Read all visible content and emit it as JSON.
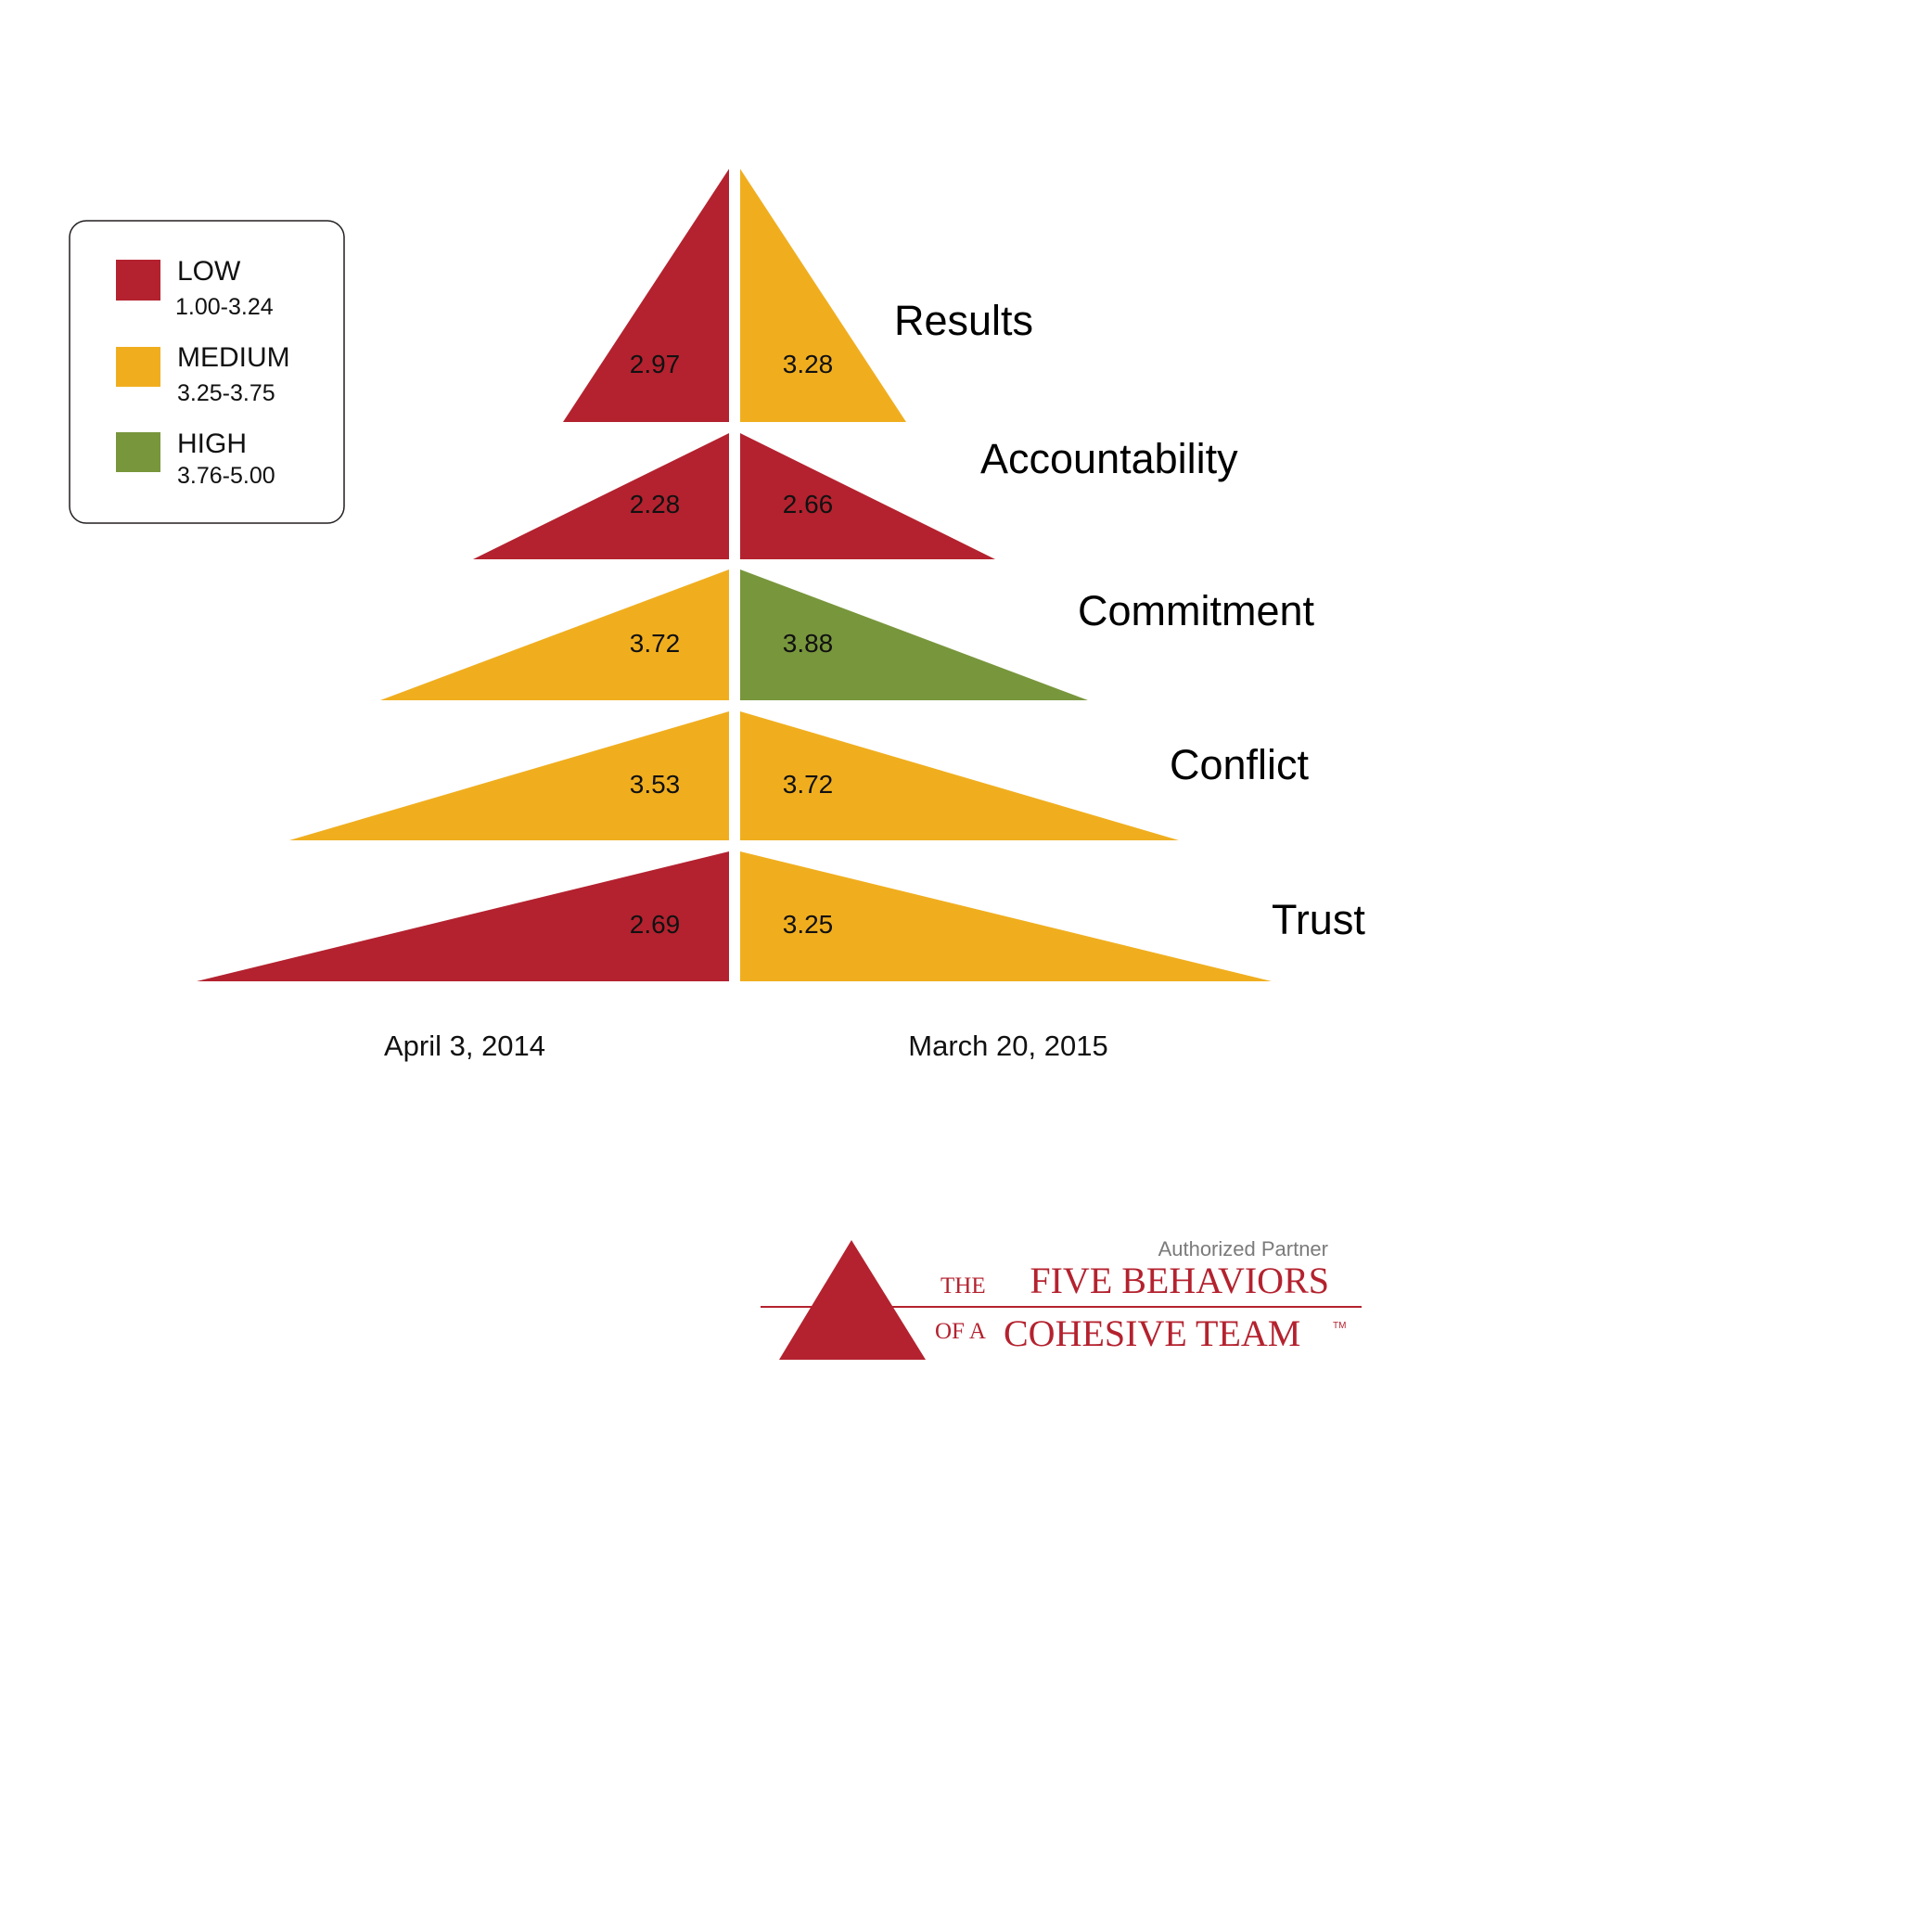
{
  "colors": {
    "low": "#b4222f",
    "medium": "#f0ae1f",
    "high": "#78963c",
    "brand": "#b4222f"
  },
  "legend": {
    "items": [
      {
        "level": "low",
        "label": "LOW",
        "range": "1.00-3.24"
      },
      {
        "level": "medium",
        "label": "MEDIUM",
        "range": "3.25-3.75"
      },
      {
        "level": "high",
        "label": "HIGH",
        "range": "3.76-5.00"
      }
    ]
  },
  "dates": {
    "left": "April 3, 2014",
    "right": "March 20, 2015"
  },
  "pyramid": {
    "levels": [
      {
        "name": "Results",
        "left_score": "2.97",
        "left_level": "low",
        "right_score": "3.28",
        "right_level": "medium"
      },
      {
        "name": "Accountability",
        "left_score": "2.28",
        "left_level": "low",
        "right_score": "2.66",
        "right_level": "low"
      },
      {
        "name": "Commitment",
        "left_score": "3.72",
        "left_level": "medium",
        "right_score": "3.88",
        "right_level": "high"
      },
      {
        "name": "Conflict",
        "left_score": "3.53",
        "left_level": "medium",
        "right_score": "3.72",
        "right_level": "medium"
      },
      {
        "name": "Trust",
        "left_score": "2.69",
        "left_level": "low",
        "right_score": "3.25",
        "right_level": "medium"
      }
    ]
  },
  "logo": {
    "partner": "Authorized Partner",
    "the": "THE",
    "five_behaviors": "FIVE BEHAVIORS",
    "of_a": "OF A",
    "cohesive_team": "COHESIVE TEAM",
    "tm": "TM"
  }
}
